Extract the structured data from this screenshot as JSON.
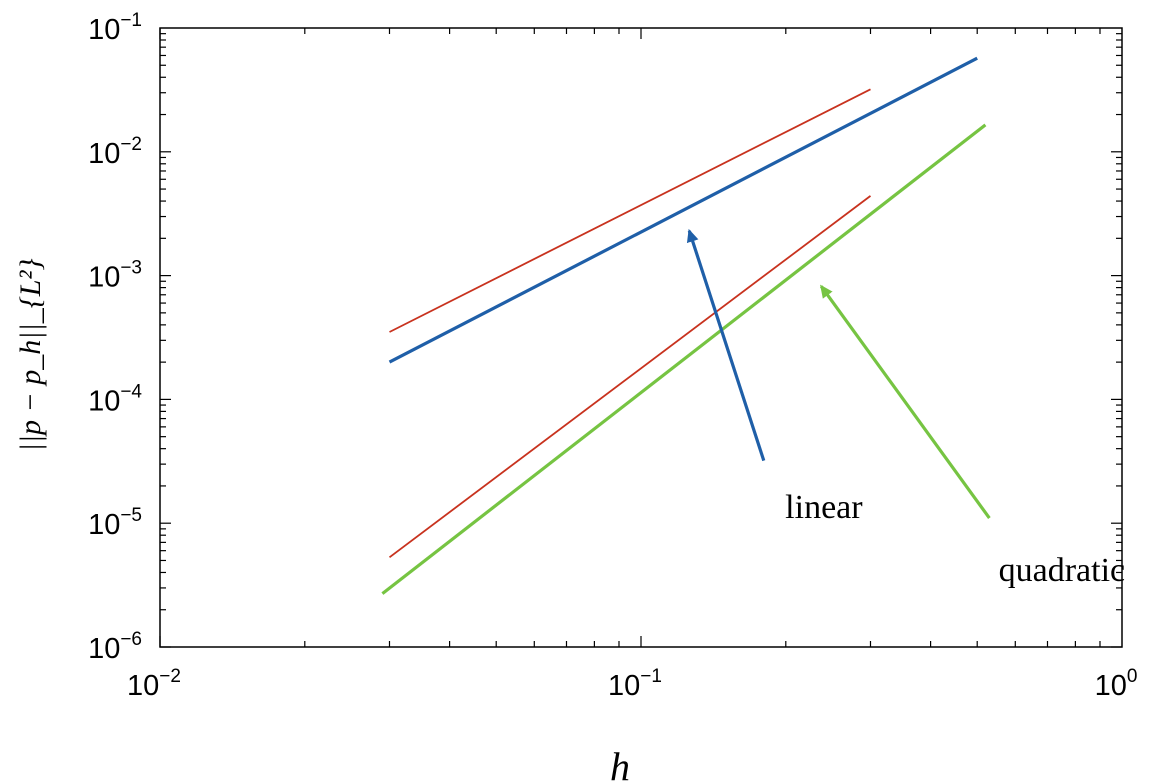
{
  "chart_data": {
    "type": "line",
    "x_scale": "log",
    "y_scale": "log",
    "xlim": [
      0.01,
      1
    ],
    "ylim": [
      1e-06,
      0.1
    ],
    "grid": false,
    "xlabel": "h",
    "ylabel": "||p − p_h||_{L²}",
    "x_ticks": [
      {
        "base": "10",
        "exp": "−2",
        "value": 0.01
      },
      {
        "base": "10",
        "exp": "−1",
        "value": 0.1
      },
      {
        "base": "10",
        "exp": "0",
        "value": 1
      }
    ],
    "y_ticks": [
      {
        "base": "10",
        "exp": "−1",
        "value": 0.1
      },
      {
        "base": "10",
        "exp": "−2",
        "value": 0.01
      },
      {
        "base": "10",
        "exp": "−3",
        "value": 0.001
      },
      {
        "base": "10",
        "exp": "−4",
        "value": 0.0001
      },
      {
        "base": "10",
        "exp": "−5",
        "value": 1e-05
      },
      {
        "base": "10",
        "exp": "−6",
        "value": 1e-06
      }
    ],
    "series": [
      {
        "color": "#1f5fa8",
        "width": 3.2,
        "x": [
          0.03,
          0.5
        ],
        "y": [
          0.0002,
          0.057
        ]
      },
      {
        "color": "#c8321e",
        "width": 1.8,
        "x": [
          0.03,
          0.3
        ],
        "y": [
          0.00035,
          0.032
        ]
      },
      {
        "color": "#76c442",
        "width": 3.2,
        "x": [
          0.029,
          0.52
        ],
        "y": [
          2.7e-06,
          0.0165
        ]
      },
      {
        "color": "#c8321e",
        "width": 1.8,
        "x": [
          0.03,
          0.3
        ],
        "y": [
          5.3e-06,
          0.0044
        ]
      }
    ],
    "annotations": [
      {
        "text": "linear",
        "color": "#1f5fa8",
        "label_x": 0.24,
        "label_y": 1.1e-05,
        "arrow_from": [
          0.18,
          3.2e-05
        ],
        "arrow_to": [
          0.126,
          0.0023
        ]
      },
      {
        "text": "quadratic",
        "color": "#76c442",
        "label_x": 0.75,
        "label_y": 3.4e-06,
        "arrow_from": [
          0.53,
          1.1e-05
        ],
        "arrow_to": [
          0.237,
          0.00082
        ]
      }
    ]
  }
}
